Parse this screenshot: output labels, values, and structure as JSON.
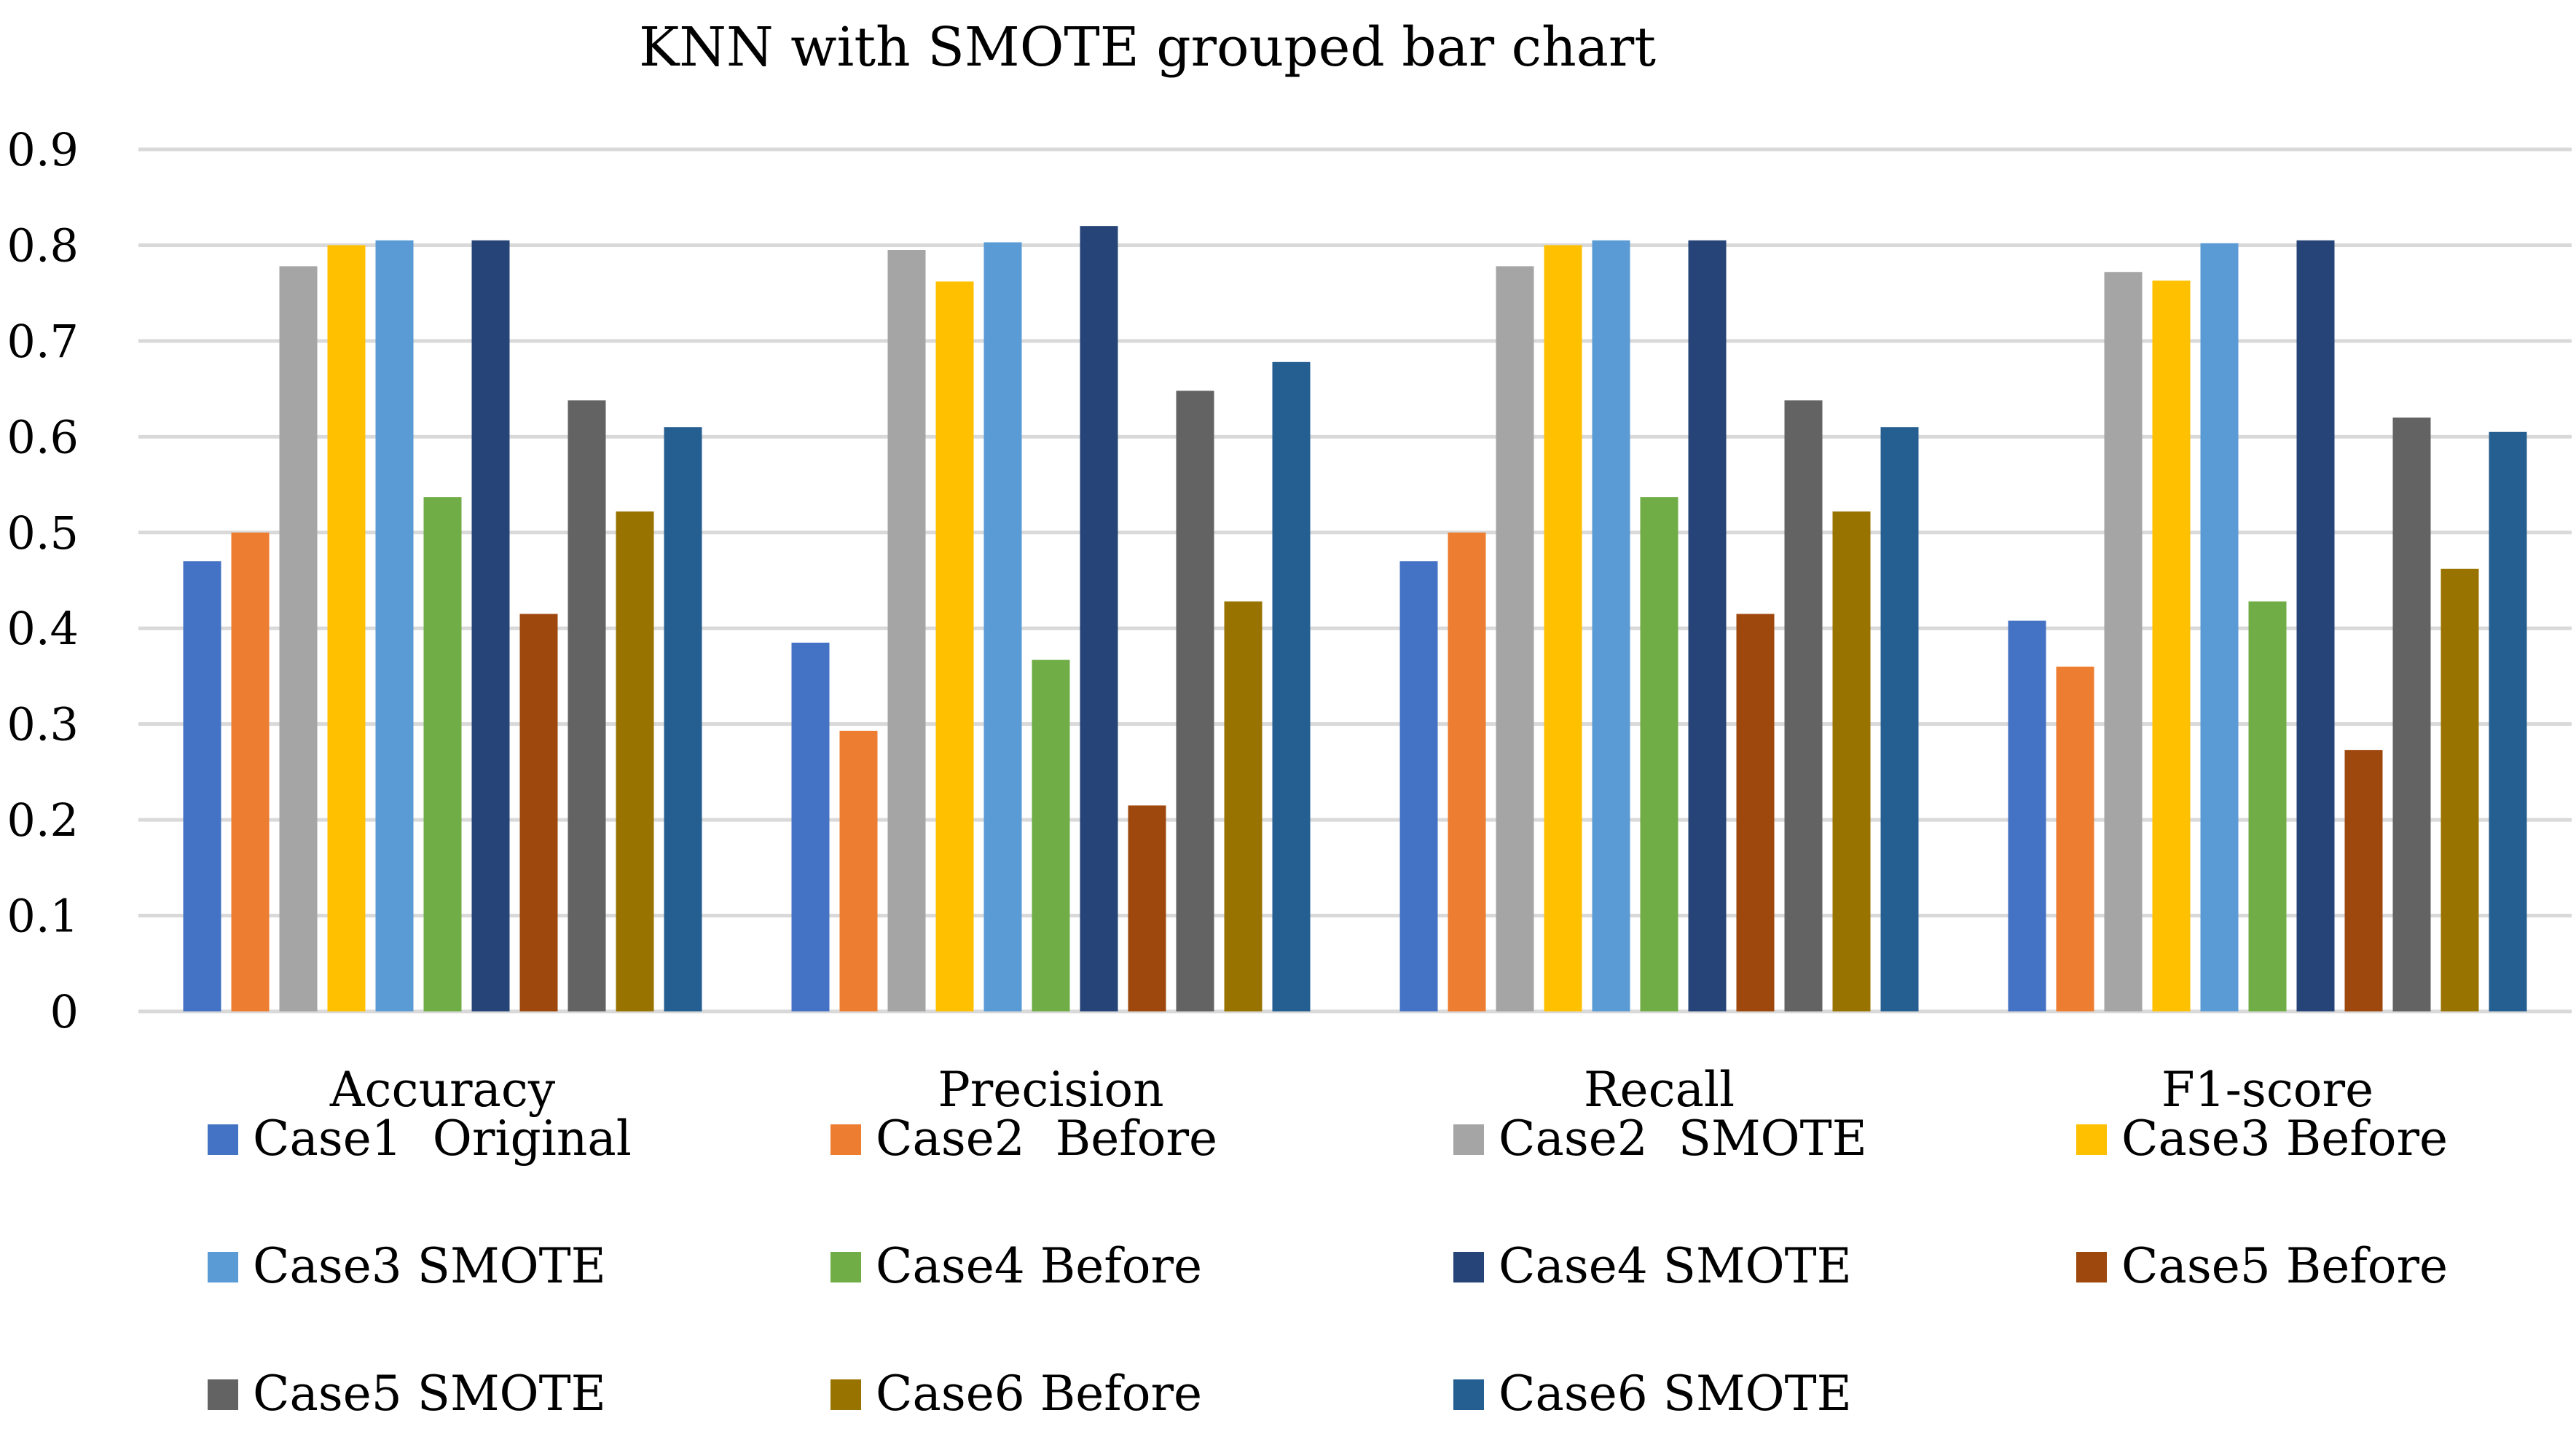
{
  "chart_data": {
    "type": "bar",
    "title": "KNN with SMOTE grouped bar chart",
    "xlabel": "",
    "ylabel": "",
    "ylim": [
      0,
      0.9
    ],
    "yticks": [
      "0",
      "0.1",
      "0.2",
      "0.3",
      "0.4",
      "0.5",
      "0.6",
      "0.7",
      "0.8",
      "0.9"
    ],
    "grid": true,
    "legend_position": "bottom",
    "categories": [
      "Accuracy",
      "Precision",
      "Recall",
      "F1-score"
    ],
    "series": [
      {
        "name": "Case1  Original",
        "color": "#4472c4",
        "values": [
          0.47,
          0.385,
          0.47,
          0.408
        ]
      },
      {
        "name": "Case2  Before",
        "color": "#ed7d31",
        "values": [
          0.5,
          0.293,
          0.5,
          0.36
        ]
      },
      {
        "name": "Case2  SMOTE",
        "color": "#a5a5a5",
        "values": [
          0.778,
          0.795,
          0.778,
          0.772
        ]
      },
      {
        "name": "Case3 Before",
        "color": "#ffc000",
        "values": [
          0.8,
          0.762,
          0.8,
          0.763
        ]
      },
      {
        "name": "Case3 SMOTE",
        "color": "#5b9bd5",
        "values": [
          0.805,
          0.803,
          0.805,
          0.802
        ]
      },
      {
        "name": "Case4 Before",
        "color": "#70ad47",
        "values": [
          0.537,
          0.367,
          0.537,
          0.428
        ]
      },
      {
        "name": "Case4 SMOTE",
        "color": "#264478",
        "values": [
          0.805,
          0.82,
          0.805,
          0.805
        ]
      },
      {
        "name": "Case5 Before",
        "color": "#9e480e",
        "values": [
          0.415,
          0.215,
          0.415,
          0.273
        ]
      },
      {
        "name": "Case5 SMOTE",
        "color": "#636363",
        "values": [
          0.638,
          0.648,
          0.638,
          0.62
        ]
      },
      {
        "name": "Case6 Before",
        "color": "#997300",
        "values": [
          0.522,
          0.428,
          0.522,
          0.462
        ]
      },
      {
        "name": "Case6 SMOTE",
        "color": "#255e91",
        "values": [
          0.61,
          0.678,
          0.61,
          0.605
        ]
      }
    ]
  }
}
